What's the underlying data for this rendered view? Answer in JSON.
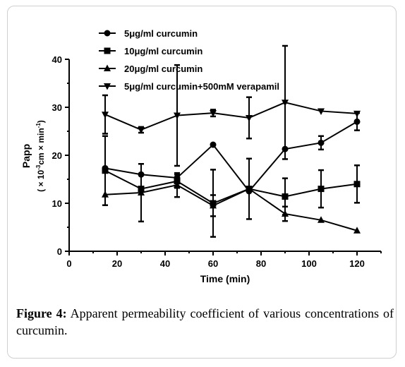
{
  "chart_data": {
    "type": "line",
    "title": "",
    "xlabel": "Time (min)",
    "ylabel": "Papp",
    "ylabel_units": [
      "( × 10",
      "-3",
      "cm × min",
      "-1",
      ")"
    ],
    "xlim": [
      0,
      130
    ],
    "ylim": [
      0,
      40
    ],
    "xticks": [
      0,
      20,
      40,
      60,
      80,
      100,
      120
    ],
    "yticks": [
      0,
      10,
      20,
      30,
      40
    ],
    "grid": false,
    "legend_position": "top-center",
    "x": [
      15,
      30,
      45,
      60,
      75,
      90,
      105,
      120
    ],
    "series": [
      {
        "name": "5μg/ml curcumin",
        "marker": "circle",
        "values": [
          17.3,
          16.0,
          15.3,
          22.2,
          12.5,
          21.3,
          22.6,
          27.0
        ],
        "error": [
          null,
          null,
          0,
          null,
          0,
          0,
          1.4,
          1.8
        ]
      },
      {
        "name": "10μg/ml curcumin",
        "marker": "square",
        "values": [
          16.8,
          13.0,
          14.6,
          10.0,
          13.0,
          11.4,
          13.0,
          14.0
        ],
        "error": [
          7.2,
          0,
          1.4,
          7.0,
          6.3,
          3.8,
          3.9,
          3.9
        ]
      },
      {
        "name": "20μg/ml curcumin",
        "marker": "triangle-up",
        "values": [
          11.8,
          12.2,
          13.8,
          9.5,
          13.0,
          7.8,
          6.5,
          4.3
        ],
        "error": [
          0,
          6.0,
          2.5,
          2.2,
          0,
          1.5,
          0,
          0
        ]
      },
      {
        "name": "5μg/ml curcumin+500mM verapamil",
        "marker": "triangle-down",
        "values": [
          28.5,
          25.3,
          28.3,
          28.8,
          27.8,
          31.0,
          29.2,
          28.7
        ],
        "error": [
          4.0,
          0.6,
          10.5,
          0.7,
          4.3,
          11.8,
          0,
          0
        ]
      }
    ]
  },
  "caption": {
    "label": "Figure",
    "number": "4:",
    "text": " Apparent permeability coefficient of various concentrations of curcumin."
  },
  "colors": {
    "ink": "#000000",
    "frame": "#cfcfcf",
    "background": "#ffffff"
  }
}
